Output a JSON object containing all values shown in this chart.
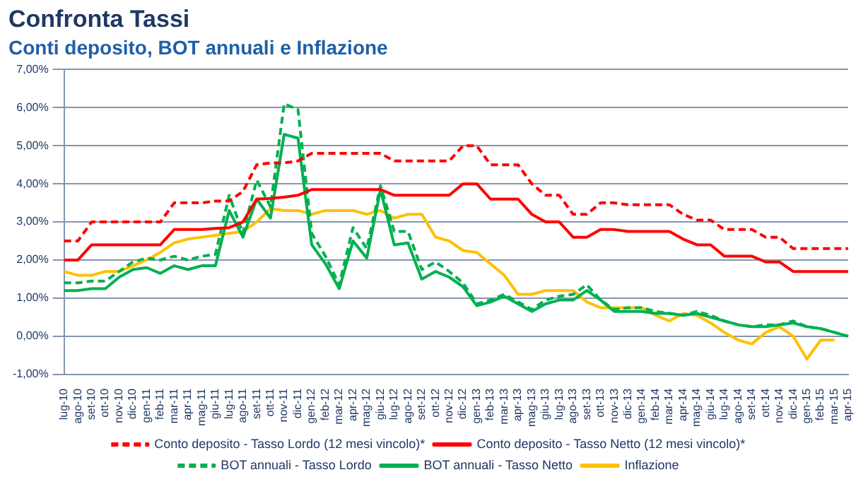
{
  "chart_data": {
    "type": "line",
    "title": "Confronta Tassi",
    "subtitle": "Conti deposito, BOT annuali e Inflazione",
    "categories": [
      "lug-10",
      "ago-10",
      "set-10",
      "ott-10",
      "nov-10",
      "dic-10",
      "gen-11",
      "feb-11",
      "mar-11",
      "apr-11",
      "mag-11",
      "giu-11",
      "lug-11",
      "ago-11",
      "set-11",
      "ott-11",
      "nov-11",
      "dic-11",
      "gen-12",
      "feb-12",
      "mar-12",
      "apr-12",
      "mag-12",
      "giu-12",
      "lug-12",
      "ago-12",
      "set-12",
      "ott-12",
      "nov-12",
      "dic-12",
      "gen-13",
      "feb-13",
      "mar-13",
      "apr-13",
      "mag-13",
      "giu-13",
      "lug-13",
      "ago-13",
      "set-13",
      "ott-13",
      "nov-13",
      "dic-13",
      "gen-14",
      "feb-14",
      "mar-14",
      "apr-14",
      "mag-14",
      "giu-14",
      "lug-14",
      "ago-14",
      "set-14",
      "ott-14",
      "nov-14",
      "dic-14",
      "gen-15",
      "feb-15",
      "mar-15",
      "apr-15"
    ],
    "series": [
      {
        "name": "Conto deposito - Tasso Lordo (12 mesi vincolo)*",
        "color": "#ff0000",
        "line_style": "dashed",
        "values": [
          2.5,
          2.5,
          3.0,
          3.0,
          3.0,
          3.0,
          3.0,
          3.0,
          3.5,
          3.5,
          3.5,
          3.55,
          3.55,
          3.8,
          4.5,
          4.55,
          4.55,
          4.6,
          4.8,
          4.8,
          4.8,
          4.8,
          4.8,
          4.8,
          4.6,
          4.6,
          4.6,
          4.6,
          4.6,
          5.0,
          5.0,
          4.5,
          4.5,
          4.5,
          4.0,
          3.7,
          3.7,
          3.2,
          3.2,
          3.5,
          3.5,
          3.45,
          3.45,
          3.45,
          3.45,
          3.2,
          3.05,
          3.05,
          2.8,
          2.8,
          2.8,
          2.6,
          2.6,
          2.3,
          2.3,
          2.3,
          2.3,
          2.3
        ]
      },
      {
        "name": "Conto deposito - Tasso Netto (12 mesi vincolo)*",
        "color": "#ff0000",
        "line_style": "solid",
        "values": [
          2.0,
          2.0,
          2.4,
          2.4,
          2.4,
          2.4,
          2.4,
          2.4,
          2.8,
          2.8,
          2.8,
          2.83,
          2.85,
          3.0,
          3.6,
          3.62,
          3.65,
          3.7,
          3.85,
          3.85,
          3.85,
          3.85,
          3.85,
          3.85,
          3.7,
          3.7,
          3.7,
          3.7,
          3.7,
          4.0,
          4.0,
          3.6,
          3.6,
          3.6,
          3.2,
          3.0,
          3.0,
          2.6,
          2.6,
          2.8,
          2.8,
          2.75,
          2.75,
          2.75,
          2.75,
          2.55,
          2.4,
          2.4,
          2.1,
          2.1,
          2.1,
          1.95,
          1.95,
          1.7,
          1.7,
          1.7,
          1.7,
          1.7
        ]
      },
      {
        "name": "BOT annuali - Tasso Lordo",
        "color": "#00b050",
        "line_style": "dashed",
        "values": [
          1.4,
          1.4,
          1.45,
          1.45,
          1.7,
          1.95,
          2.05,
          2.0,
          2.1,
          2.0,
          2.1,
          2.15,
          3.7,
          2.7,
          4.1,
          3.4,
          6.1,
          5.95,
          2.7,
          2.1,
          1.35,
          2.85,
          2.3,
          3.95,
          2.75,
          2.75,
          1.75,
          1.95,
          1.7,
          1.4,
          0.85,
          0.95,
          1.1,
          0.9,
          0.7,
          0.95,
          1.05,
          1.1,
          1.35,
          0.95,
          0.7,
          0.75,
          0.75,
          0.65,
          0.6,
          0.55,
          0.65,
          0.55,
          0.4,
          0.3,
          0.25,
          0.3,
          0.3,
          0.4,
          0.25,
          0.2,
          0.1,
          0.0
        ]
      },
      {
        "name": "BOT annuali - Tasso Netto",
        "color": "#00b050",
        "line_style": "solid",
        "values": [
          1.2,
          1.2,
          1.25,
          1.25,
          1.55,
          1.75,
          1.8,
          1.65,
          1.85,
          1.75,
          1.85,
          1.85,
          3.3,
          2.6,
          3.6,
          3.1,
          5.3,
          5.2,
          2.4,
          1.9,
          1.25,
          2.5,
          2.05,
          3.85,
          2.4,
          2.45,
          1.5,
          1.7,
          1.55,
          1.3,
          0.8,
          0.9,
          1.05,
          0.85,
          0.65,
          0.85,
          0.95,
          0.95,
          1.2,
          0.95,
          0.65,
          0.65,
          0.65,
          0.6,
          0.6,
          0.55,
          0.6,
          0.5,
          0.4,
          0.3,
          0.25,
          0.25,
          0.3,
          0.35,
          0.25,
          0.2,
          0.1,
          0.0
        ]
      },
      {
        "name": "Inflazione",
        "color": "#ffc000",
        "line_style": "solid",
        "values": [
          1.7,
          1.6,
          1.6,
          1.7,
          1.7,
          1.85,
          2.0,
          2.2,
          2.45,
          2.55,
          2.6,
          2.65,
          2.7,
          2.75,
          3.0,
          3.35,
          3.3,
          3.3,
          3.2,
          3.3,
          3.3,
          3.3,
          3.2,
          3.3,
          3.1,
          3.2,
          3.2,
          2.6,
          2.5,
          2.25,
          2.2,
          1.9,
          1.6,
          1.1,
          1.1,
          1.2,
          1.2,
          1.2,
          0.9,
          0.75,
          0.75,
          0.75,
          0.75,
          0.55,
          0.4,
          0.6,
          0.55,
          0.35,
          0.1,
          -0.1,
          -0.2,
          0.1,
          0.25,
          0.0,
          -0.6,
          -0.1,
          -0.1,
          null
        ]
      }
    ],
    "ylim": [
      -1,
      7
    ],
    "yticks": [
      {
        "value": -1,
        "label": "-1,00%"
      },
      {
        "value": 0,
        "label": "0,00%"
      },
      {
        "value": 1,
        "label": "1,00%"
      },
      {
        "value": 2,
        "label": "2,00%"
      },
      {
        "value": 3,
        "label": "3,00%"
      },
      {
        "value": 4,
        "label": "4,00%"
      },
      {
        "value": 5,
        "label": "5,00%"
      },
      {
        "value": 6,
        "label": "6,00%"
      },
      {
        "value": 7,
        "label": "7,00%"
      }
    ],
    "grid": "y",
    "legend": "bottom",
    "marker": "none"
  }
}
